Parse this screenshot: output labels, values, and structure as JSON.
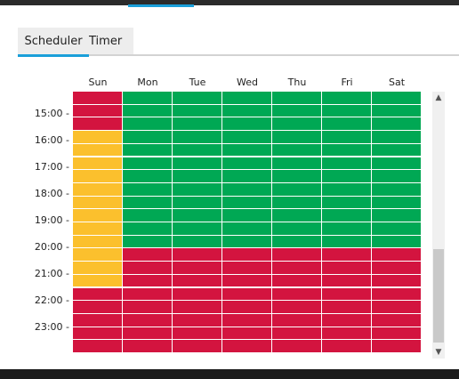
{
  "tabs": [
    {
      "label": "Scheduler",
      "active": true
    },
    {
      "label": "Timer",
      "active": false
    }
  ],
  "days": [
    "Sun",
    "Mon",
    "Tue",
    "Wed",
    "Thu",
    "Fri",
    "Sat"
  ],
  "time_labels": [
    "15:00 -",
    "16:00 -",
    "17:00 -",
    "18:00 -",
    "19:00 -",
    "20:00 -",
    "21:00 -",
    "22:00 -",
    "23:00 -"
  ],
  "colors": {
    "red": "#d3143f",
    "green": "#00a854",
    "yellow": "#fbc02d",
    "accent": "#1a9fd9"
  },
  "schedule": {
    "Sun": [
      "red",
      "red",
      "red",
      "yellow",
      "yellow",
      "yellow",
      "yellow",
      "yellow",
      "yellow",
      "yellow",
      "yellow",
      "yellow",
      "yellow",
      "yellow",
      "yellow",
      "red",
      "red",
      "red",
      "red",
      "red"
    ],
    "Mon": [
      "green",
      "green",
      "green",
      "green",
      "green",
      "green",
      "green",
      "green",
      "green",
      "green",
      "green",
      "green",
      "red",
      "red",
      "red",
      "red",
      "red",
      "red",
      "red",
      "red"
    ],
    "Tue": [
      "green",
      "green",
      "green",
      "green",
      "green",
      "green",
      "green",
      "green",
      "green",
      "green",
      "green",
      "green",
      "red",
      "red",
      "red",
      "red",
      "red",
      "red",
      "red",
      "red"
    ],
    "Wed": [
      "green",
      "green",
      "green",
      "green",
      "green",
      "green",
      "green",
      "green",
      "green",
      "green",
      "green",
      "green",
      "red",
      "red",
      "red",
      "red",
      "red",
      "red",
      "red",
      "red"
    ],
    "Thu": [
      "green",
      "green",
      "green",
      "green",
      "green",
      "green",
      "green",
      "green",
      "green",
      "green",
      "green",
      "green",
      "red",
      "red",
      "red",
      "red",
      "red",
      "red",
      "red",
      "red"
    ],
    "Fri": [
      "green",
      "green",
      "green",
      "green",
      "green",
      "green",
      "green",
      "green",
      "green",
      "green",
      "green",
      "green",
      "red",
      "red",
      "red",
      "red",
      "red",
      "red",
      "red",
      "red"
    ],
    "Sat": [
      "green",
      "green",
      "green",
      "green",
      "green",
      "green",
      "green",
      "green",
      "green",
      "green",
      "green",
      "green",
      "red",
      "red",
      "red",
      "red",
      "red",
      "red",
      "red",
      "red"
    ]
  },
  "scrollbar": {
    "up_icon": "chevron-up-icon",
    "down_icon": "chevron-down-icon",
    "thumb_start_fraction": 0.6,
    "thumb_end_fraction": 1.0
  }
}
